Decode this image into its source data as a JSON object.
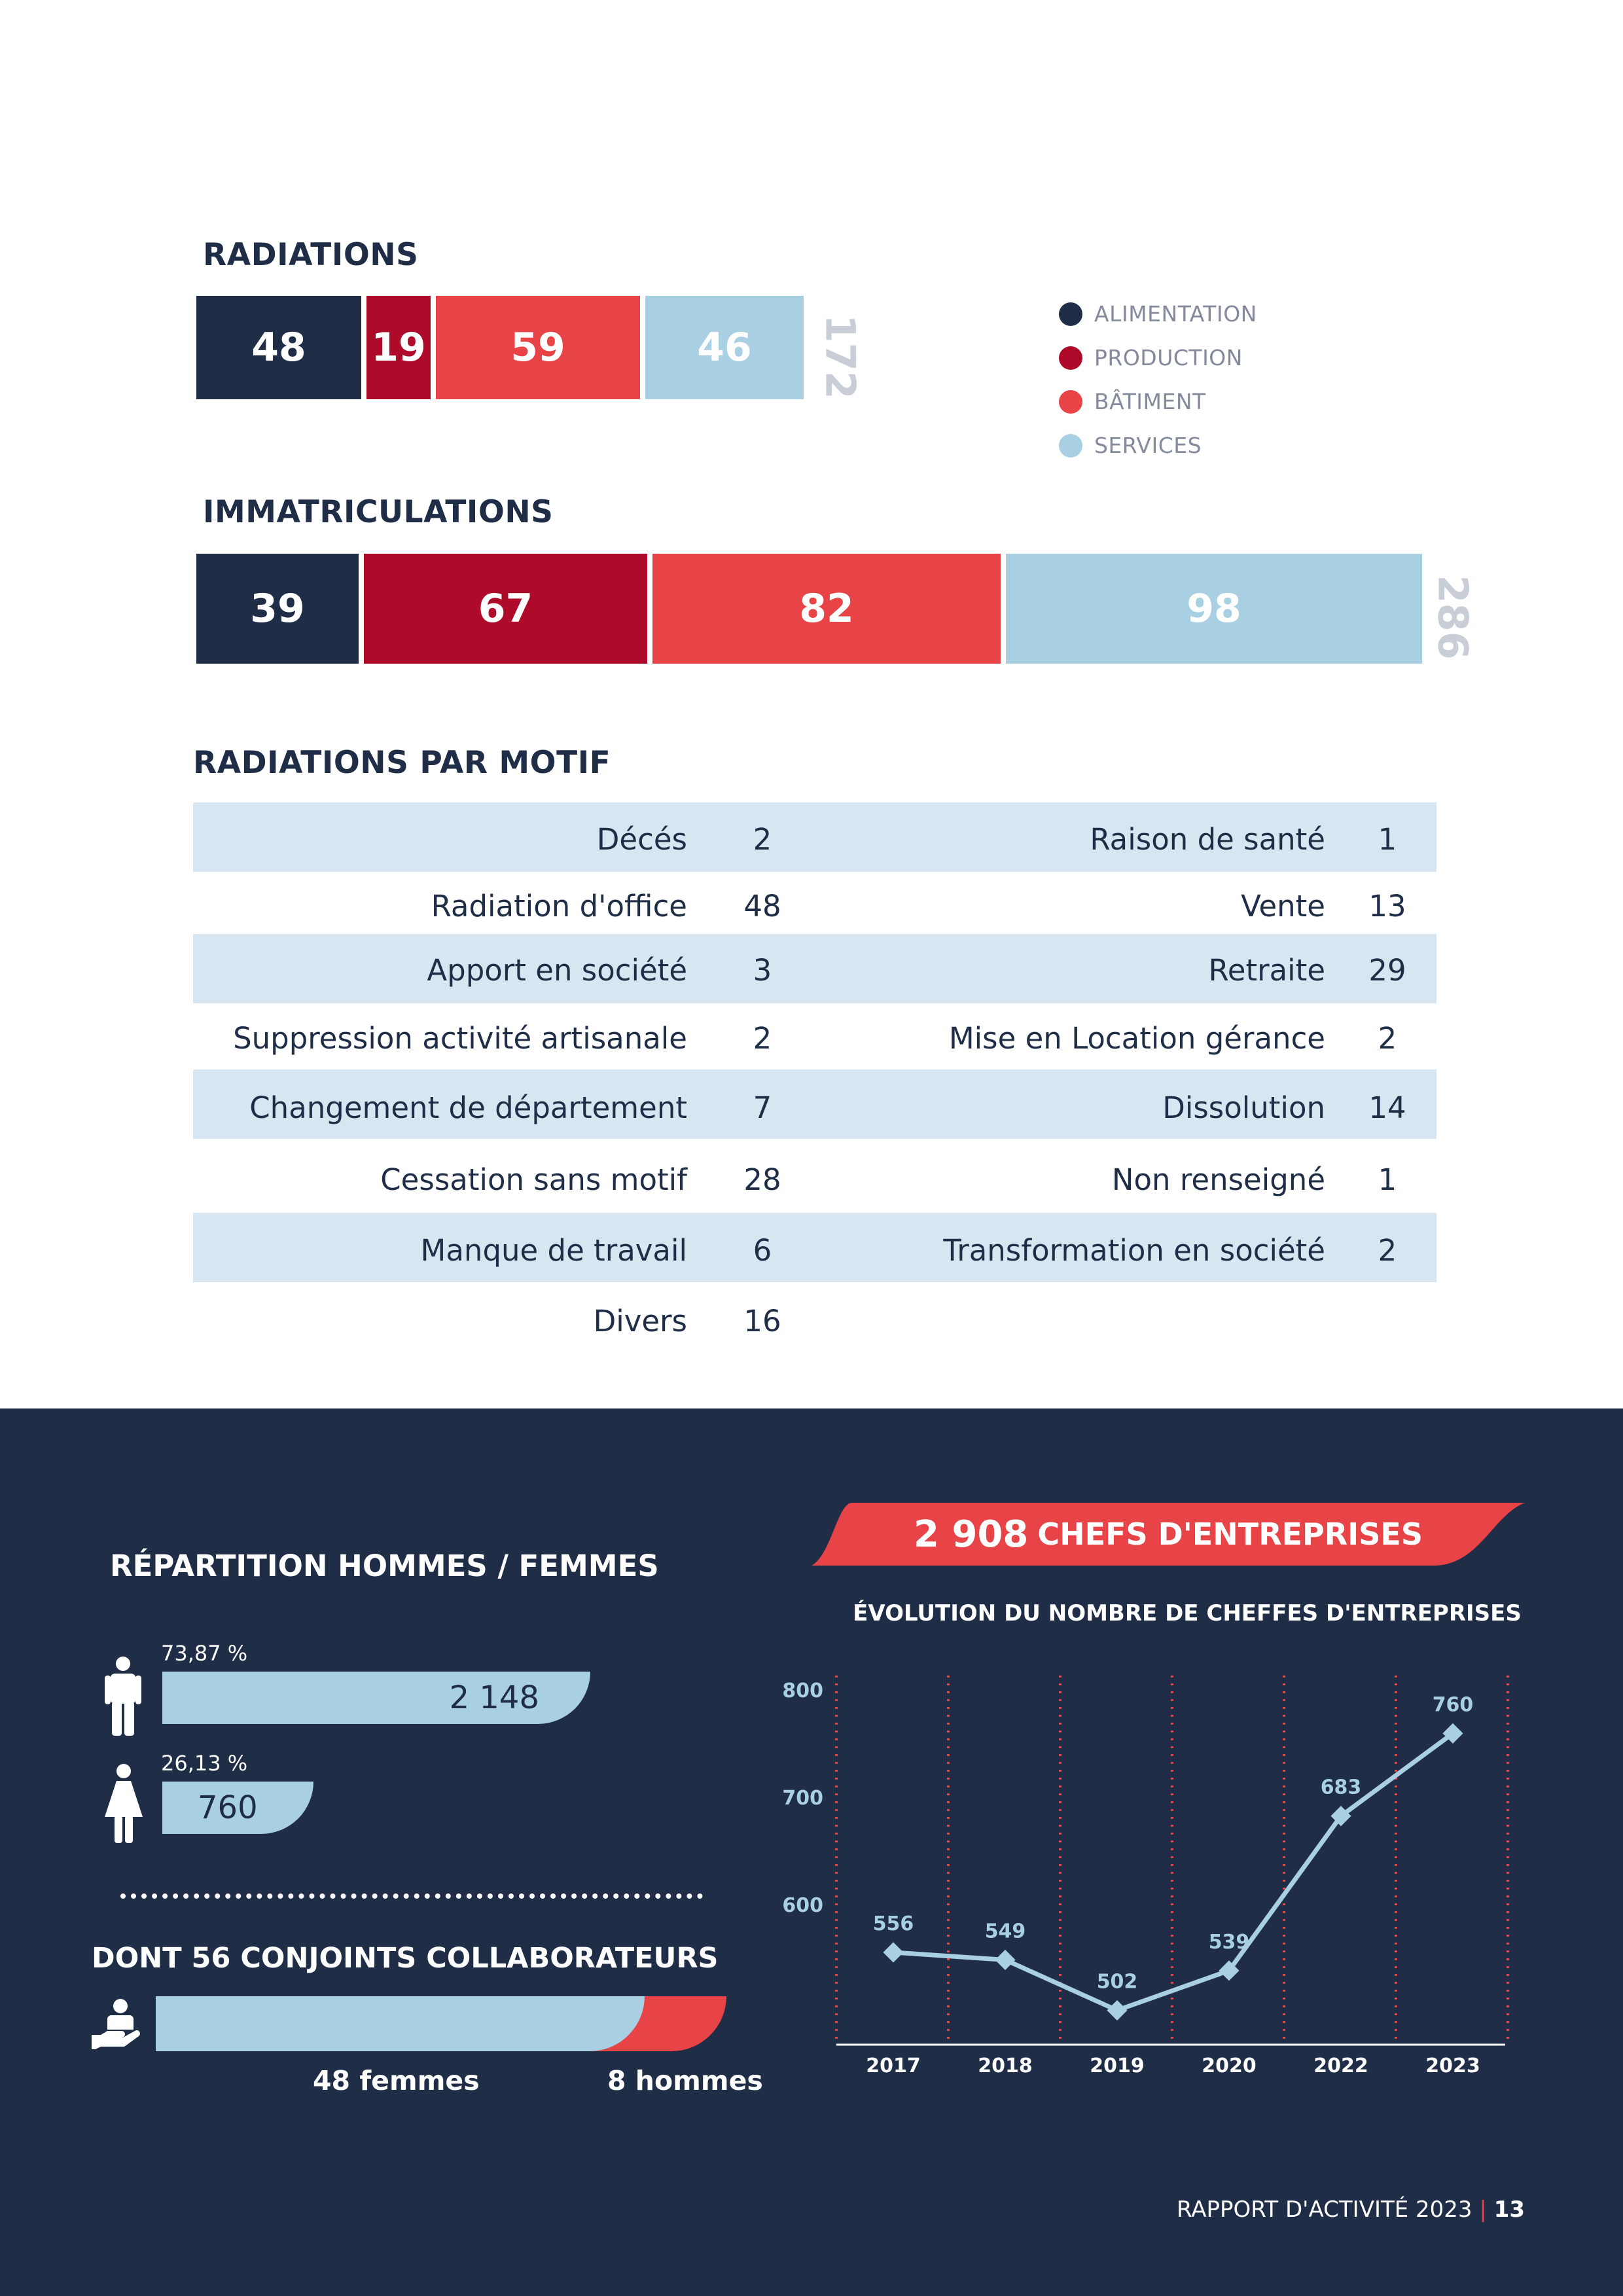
{
  "radiations": {
    "title": "RADIATIONS",
    "values": [
      "48",
      "19",
      "59",
      "46"
    ],
    "total": "172"
  },
  "legend": {
    "items": [
      "ALIMENTATION",
      "PRODUCTION",
      "BÂTIMENT",
      "SERVICES"
    ],
    "colors": [
      "#1f2d47",
      "#ae0b2a",
      "#e84346",
      "#a9cfe3"
    ]
  },
  "immatriculations": {
    "title": "IMMATRICULATIONS",
    "values": [
      "39",
      "67",
      "82",
      "98"
    ],
    "total": "286"
  },
  "motifs": {
    "title": "RADIATIONS PAR MOTIF",
    "rows": [
      {
        "left_label": "Décés",
        "left_value": "2",
        "right_label": "Raison de santé",
        "right_value": "1"
      },
      {
        "left_label": "Radiation d'office",
        "left_value": "48",
        "right_label": "Vente",
        "right_value": "13"
      },
      {
        "left_label": "Apport en société",
        "left_value": "3",
        "right_label": "Retraite",
        "right_value": "29"
      },
      {
        "left_label": "Suppression activité artisanale",
        "left_value": "2",
        "right_label": "Mise en Location gérance",
        "right_value": "2"
      },
      {
        "left_label": "Changement de département",
        "left_value": "7",
        "right_label": "Dissolution",
        "right_value": "14"
      },
      {
        "left_label": "Cessation sans motif",
        "left_value": "28",
        "right_label": "Non renseigné",
        "right_value": "1"
      },
      {
        "left_label": "Manque de travail",
        "left_value": "6",
        "right_label": "Transformation en société",
        "right_value": "2"
      },
      {
        "left_label": "Divers",
        "left_value": "16",
        "right_label": "",
        "right_value": ""
      }
    ]
  },
  "gender": {
    "title": "RÉPARTITION HOMMES / FEMMES",
    "men_pct": "73,87 %",
    "men_count": "2 148",
    "men_share": 0.7387,
    "women_pct": "26,13 %",
    "women_count": "760",
    "women_share": 0.2613
  },
  "conjoints": {
    "title": "DONT 56 CONJOINTS COLLABORATEURS",
    "women_label": "48 femmes",
    "men_label": "8 hommes",
    "women_share": 0.857
  },
  "chefs": {
    "banner_number": "2 908",
    "banner_text": "CHEFS D'ENTREPRISES"
  },
  "chart_data": {
    "type": "line",
    "title": "ÉVOLUTION DU NOMBRE DE CHEFFES D'ENTREPRISES",
    "categories": [
      "2017",
      "2018",
      "2019",
      "2020",
      "2022",
      "2023"
    ],
    "series": [
      {
        "values": [
          556,
          549,
          502,
          539,
          683,
          760
        ]
      }
    ],
    "yticks": [
      600,
      700,
      800
    ],
    "ylim": [
      470,
      820
    ],
    "grid": "vertical dotted",
    "xlabel": "",
    "ylabel": ""
  },
  "footer": {
    "report": "RAPPORT D'ACTIVITÉ 2023",
    "separator": "|",
    "page": "13"
  }
}
